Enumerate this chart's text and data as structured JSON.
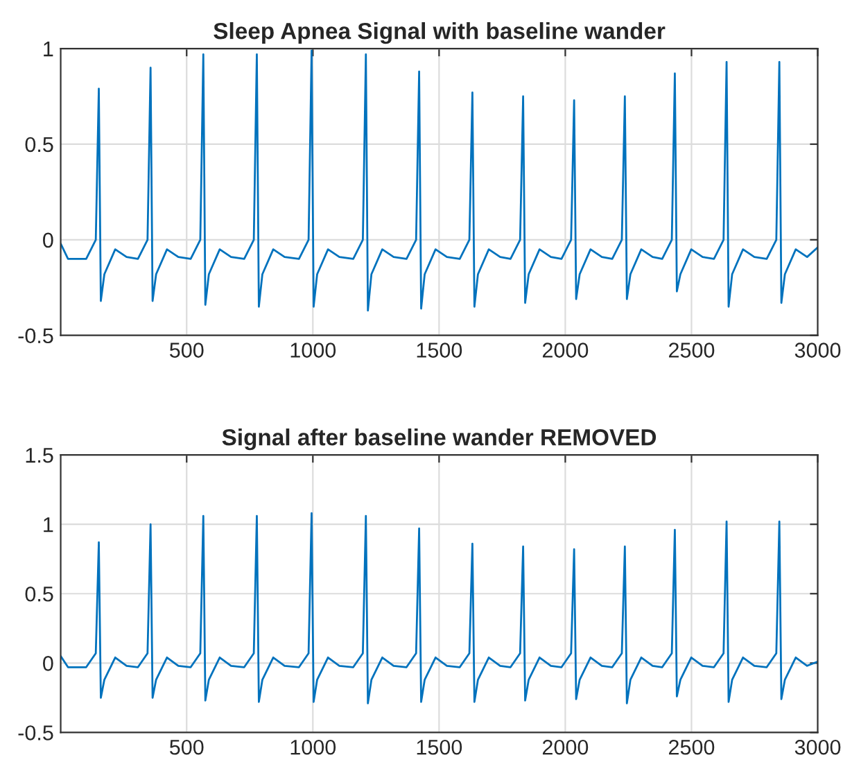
{
  "chart_data": [
    {
      "type": "line",
      "title": "Sleep Apnea Signal with baseline wander",
      "xlim": [
        1,
        3000
      ],
      "xticks": [
        500,
        1000,
        1500,
        2000,
        2500,
        3000
      ],
      "ylim": [
        -0.5,
        1
      ],
      "yticks": [
        -0.5,
        0,
        0.5,
        1
      ],
      "grid": true,
      "line_style": "solid",
      "series": [
        {
          "color": "#0072bd",
          "x": [
            1,
            30,
            102,
            140,
            152,
            160,
            174,
            217,
            262,
            307,
            345,
            357,
            365,
            379,
            422,
            467,
            516,
            554,
            566,
            574,
            588,
            631,
            676,
            728,
            766,
            778,
            786,
            800,
            843,
            888,
            945,
            983,
            995,
            1003,
            1017,
            1060,
            1105,
            1160,
            1198,
            1210,
            1218,
            1232,
            1275,
            1320,
            1371,
            1409,
            1421,
            1429,
            1443,
            1486,
            1531,
            1582,
            1620,
            1632,
            1640,
            1654,
            1697,
            1742,
            1783,
            1821,
            1833,
            1841,
            1855,
            1898,
            1943,
            1985,
            2023,
            2035,
            2043,
            2057,
            2100,
            2145,
            2186,
            2224,
            2236,
            2244,
            2258,
            2301,
            2346,
            2384,
            2422,
            2434,
            2442,
            2456,
            2499,
            2544,
            2589,
            2627,
            2639,
            2647,
            2661,
            2704,
            2749,
            2798,
            2836,
            2848,
            2856,
            2870,
            2913,
            2958,
            3000
          ],
          "values": [
            -0.02,
            -0.1,
            -0.1,
            0.0,
            0.79,
            -0.32,
            -0.18,
            -0.05,
            -0.09,
            -0.1,
            0.0,
            0.9,
            -0.32,
            -0.18,
            -0.05,
            -0.09,
            -0.1,
            0.0,
            0.97,
            -0.34,
            -0.18,
            -0.05,
            -0.09,
            -0.1,
            0.0,
            0.97,
            -0.35,
            -0.18,
            -0.05,
            -0.09,
            -0.1,
            0.0,
            0.99,
            -0.35,
            -0.18,
            -0.05,
            -0.09,
            -0.1,
            0.0,
            0.97,
            -0.37,
            -0.18,
            -0.05,
            -0.09,
            -0.1,
            0.0,
            0.88,
            -0.36,
            -0.18,
            -0.05,
            -0.09,
            -0.1,
            0.0,
            0.77,
            -0.35,
            -0.18,
            -0.05,
            -0.09,
            -0.1,
            0.0,
            0.75,
            -0.33,
            -0.18,
            -0.05,
            -0.09,
            -0.1,
            0.0,
            0.73,
            -0.31,
            -0.18,
            -0.05,
            -0.09,
            -0.1,
            0.0,
            0.75,
            -0.31,
            -0.18,
            -0.05,
            -0.09,
            -0.1,
            0.0,
            0.87,
            -0.27,
            -0.18,
            -0.05,
            -0.09,
            -0.1,
            0.0,
            0.93,
            -0.35,
            -0.18,
            -0.05,
            -0.09,
            -0.1,
            0.0,
            0.93,
            -0.33,
            -0.18,
            -0.05,
            -0.09,
            -0.04
          ]
        }
      ]
    },
    {
      "type": "line",
      "title": "Signal after baseline wander REMOVED",
      "xlim": [
        1,
        3000
      ],
      "xticks": [
        500,
        1000,
        1500,
        2000,
        2500,
        3000
      ],
      "ylim": [
        -0.5,
        1.5
      ],
      "yticks": [
        -0.5,
        0,
        0.5,
        1,
        1.5
      ],
      "grid": true,
      "line_style": "solid",
      "series": [
        {
          "color": "#0072bd",
          "x": [
            1,
            30,
            102,
            140,
            152,
            160,
            174,
            217,
            262,
            307,
            345,
            357,
            365,
            379,
            422,
            467,
            516,
            554,
            566,
            574,
            588,
            631,
            676,
            728,
            766,
            778,
            786,
            800,
            843,
            888,
            945,
            983,
            995,
            1003,
            1017,
            1060,
            1105,
            1160,
            1198,
            1210,
            1218,
            1232,
            1275,
            1320,
            1371,
            1409,
            1421,
            1429,
            1443,
            1486,
            1531,
            1582,
            1620,
            1632,
            1640,
            1654,
            1697,
            1742,
            1783,
            1821,
            1833,
            1841,
            1855,
            1898,
            1943,
            1985,
            2023,
            2035,
            2043,
            2057,
            2100,
            2145,
            2186,
            2224,
            2236,
            2244,
            2258,
            2301,
            2346,
            2384,
            2422,
            2434,
            2442,
            2456,
            2499,
            2544,
            2589,
            2627,
            2639,
            2647,
            2661,
            2704,
            2749,
            2798,
            2836,
            2848,
            2856,
            2870,
            2913,
            2958,
            3000
          ],
          "values": [
            0.05,
            -0.03,
            -0.03,
            0.07,
            0.87,
            -0.25,
            -0.12,
            0.04,
            -0.02,
            -0.03,
            0.07,
            1.0,
            -0.25,
            -0.12,
            0.04,
            -0.02,
            -0.03,
            0.07,
            1.06,
            -0.27,
            -0.12,
            0.04,
            -0.02,
            -0.03,
            0.07,
            1.06,
            -0.28,
            -0.12,
            0.04,
            -0.02,
            -0.03,
            0.07,
            1.08,
            -0.28,
            -0.12,
            0.04,
            -0.02,
            -0.03,
            0.07,
            1.06,
            -0.29,
            -0.12,
            0.04,
            -0.02,
            -0.03,
            0.07,
            0.97,
            -0.28,
            -0.12,
            0.04,
            -0.02,
            -0.03,
            0.07,
            0.86,
            -0.28,
            -0.12,
            0.04,
            -0.02,
            -0.03,
            0.07,
            0.84,
            -0.27,
            -0.12,
            0.04,
            -0.02,
            -0.03,
            0.07,
            0.82,
            -0.26,
            -0.12,
            0.04,
            -0.02,
            -0.03,
            0.07,
            0.84,
            -0.29,
            -0.12,
            0.04,
            -0.02,
            -0.03,
            0.07,
            0.96,
            -0.24,
            -0.12,
            0.04,
            -0.02,
            -0.03,
            0.07,
            1.02,
            -0.28,
            -0.12,
            0.04,
            -0.02,
            -0.03,
            0.07,
            1.02,
            -0.26,
            -0.12,
            0.04,
            -0.02,
            0.01
          ]
        }
      ]
    }
  ]
}
